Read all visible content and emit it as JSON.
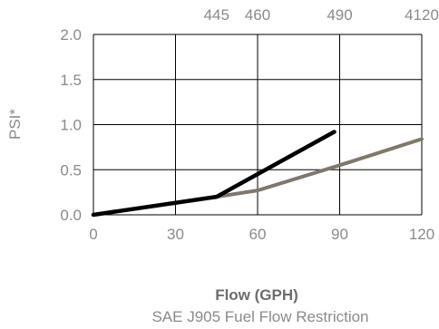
{
  "chart_data": {
    "type": "line",
    "xlabel": "Flow (GPH)",
    "ylabel": "PSI*",
    "caption": "SAE J905 Fuel Flow Restriction",
    "xlim": [
      0,
      120
    ],
    "ylim": [
      0,
      2.0
    ],
    "x_ticks": [
      0,
      30,
      60,
      90,
      120
    ],
    "x_tick_labels": [
      "0",
      "30",
      "60",
      "90",
      "120"
    ],
    "y_ticks": [
      0,
      0.5,
      1.0,
      1.5,
      2.0
    ],
    "y_tick_labels": [
      "0.0",
      "0.5",
      "1.0",
      "1.5",
      "2.0"
    ],
    "top_ticks": [
      45,
      60,
      90,
      120
    ],
    "top_tick_labels": [
      "445",
      "460",
      "490",
      "4120"
    ],
    "grid": true,
    "series": [
      {
        "color": "#000000",
        "x": [
          0,
          45,
          88
        ],
        "y": [
          0,
          0.2,
          0.92
        ]
      },
      {
        "color": "#7f776c",
        "x": [
          45,
          60,
          90,
          120
        ],
        "y": [
          0.2,
          0.27,
          0.55,
          0.84
        ]
      }
    ]
  }
}
